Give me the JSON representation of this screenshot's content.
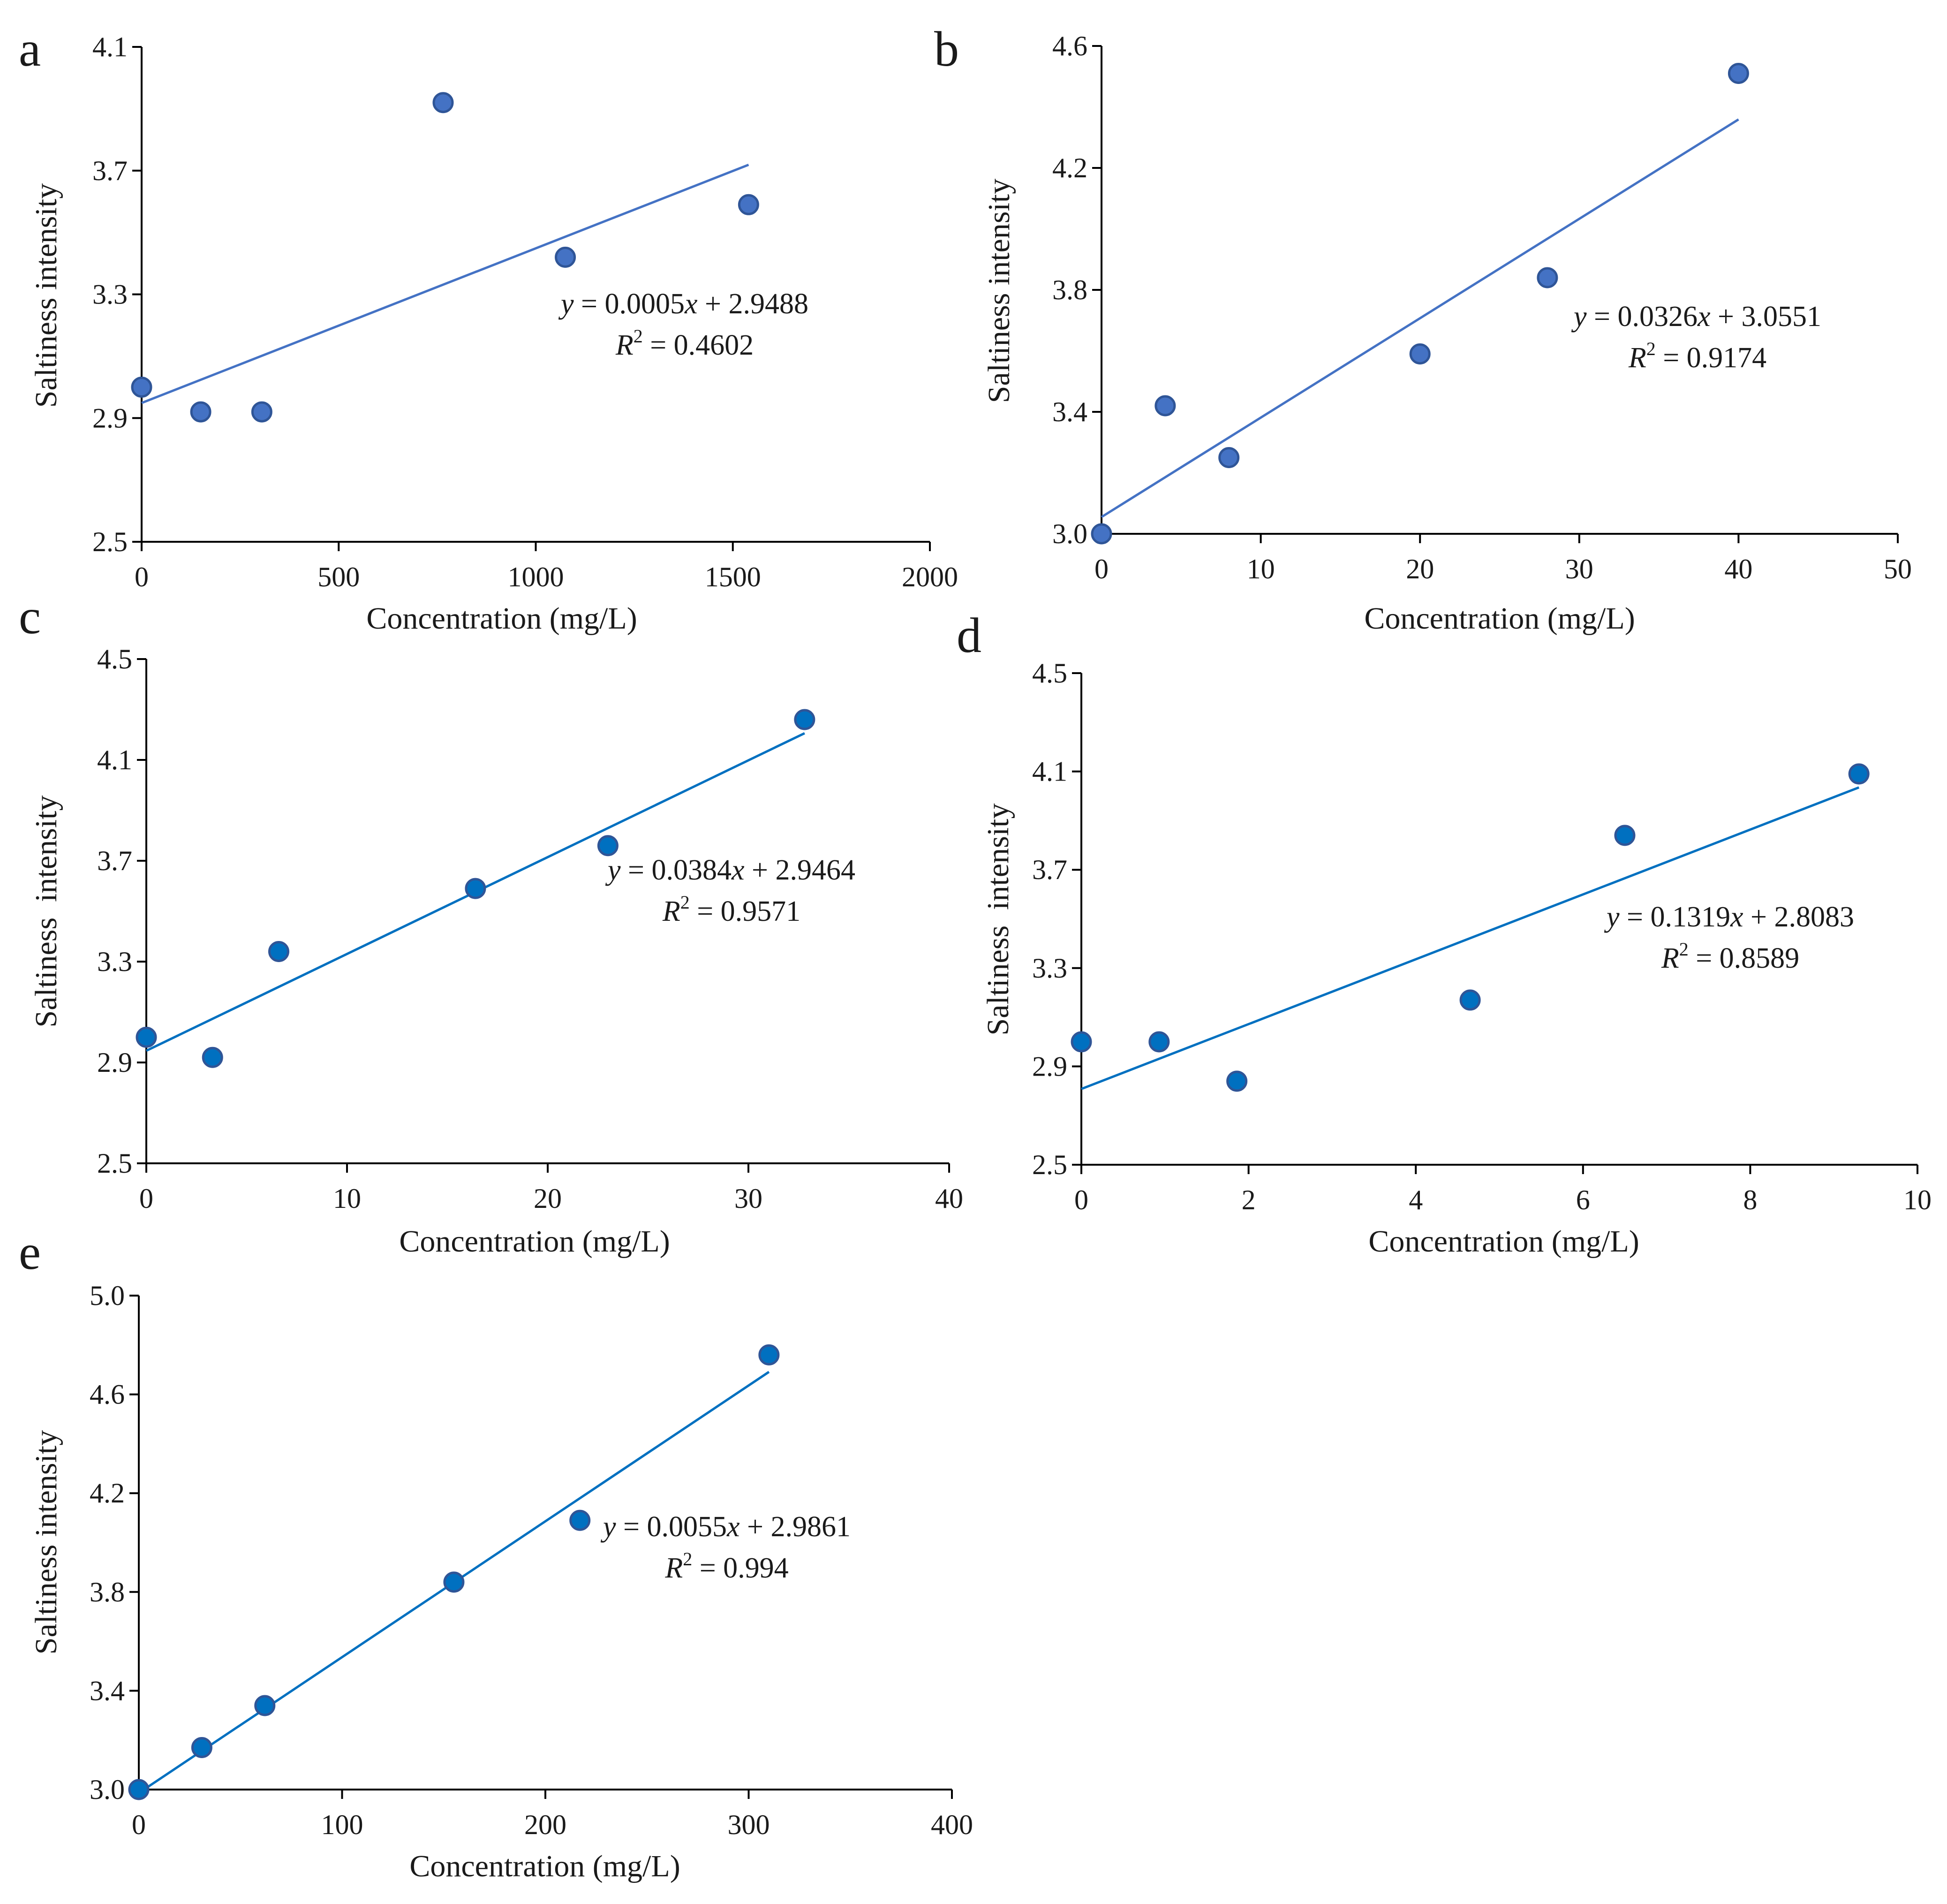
{
  "chart_data": [
    {
      "type": "scatter",
      "panel_label": "a",
      "xlabel": "Concentration (mg/L)",
      "ylabel": "Saltiness intensity",
      "xlim": [
        0,
        2000
      ],
      "ylim": [
        2.5,
        4.1
      ],
      "x_ticks": [
        "0",
        "500",
        "1000",
        "1500",
        "2000"
      ],
      "y_ticks": [
        "2.5",
        "2.9",
        "3.3",
        "3.7",
        "4.1"
      ],
      "points": {
        "x": [
          0,
          150,
          305,
          765,
          1075,
          1540
        ],
        "y": [
          3.0,
          2.92,
          2.92,
          3.92,
          3.42,
          3.59
        ]
      },
      "trendline": {
        "slope": 0.0005,
        "intercept": 2.9488,
        "x_range": [
          0,
          1540
        ]
      },
      "equation": {
        "prefix": "y",
        "body": " = 0.0005x + 2.9488",
        "r2_label": "R",
        "r2_sup": "2",
        "r2_value": " = 0.4602"
      },
      "marker_color": "#4472C4",
      "line_color": "#4472C4"
    },
    {
      "type": "scatter",
      "panel_label": "b",
      "xlabel": "Concentration (mg/L)",
      "ylabel": "Saltiness intensity",
      "xlim": [
        0,
        50
      ],
      "ylim": [
        3.0,
        4.6
      ],
      "x_ticks": [
        "0",
        "10",
        "20",
        "30",
        "40",
        "50"
      ],
      "y_ticks": [
        "3.0",
        "3.4",
        "3.8",
        "4.2",
        "4.6"
      ],
      "points": {
        "x": [
          0,
          4,
          8,
          20,
          28,
          40
        ],
        "y": [
          3.0,
          3.42,
          3.25,
          3.59,
          3.84,
          4.51
        ]
      },
      "trendline": {
        "slope": 0.0326,
        "intercept": 3.0551,
        "x_range": [
          0,
          40
        ]
      },
      "equation": {
        "prefix": "y",
        "body": " = 0.0326x + 3.0551",
        "r2_label": "R",
        "r2_sup": "2",
        "r2_value": " = 0.9174"
      },
      "marker_color": "#4472C4",
      "line_color": "#4472C4"
    },
    {
      "type": "scatter",
      "panel_label": "c",
      "xlabel": "Concentration (mg/L)",
      "ylabel": "Saltiness  intensity",
      "xlim": [
        0,
        40
      ],
      "ylim": [
        2.5,
        4.5
      ],
      "x_ticks": [
        "0",
        "10",
        "20",
        "30",
        "40"
      ],
      "y_ticks": [
        "2.5",
        "2.9",
        "3.3",
        "3.7",
        "4.1",
        "4.5"
      ],
      "points": {
        "x": [
          0,
          3.3,
          6.6,
          16.4,
          23,
          32.8
        ],
        "y": [
          3.0,
          2.92,
          3.34,
          3.59,
          3.76,
          4.26
        ]
      },
      "trendline": {
        "slope": 0.0384,
        "intercept": 2.9464,
        "x_range": [
          0,
          32.8
        ]
      },
      "equation": {
        "prefix": "y",
        "body": " = 0.0384x + 2.9464",
        "r2_label": "R",
        "r2_sup": "2",
        "r2_value": " = 0.9571"
      },
      "marker_color": "#0070C0",
      "line_color": "#0070C0"
    },
    {
      "type": "scatter",
      "panel_label": "d",
      "xlabel": "Concentration (mg/L)",
      "ylabel": "Saltiness  intensity",
      "xlim": [
        0,
        10
      ],
      "ylim": [
        2.5,
        4.5
      ],
      "x_ticks": [
        "0",
        "2",
        "4",
        "6",
        "8",
        "10"
      ],
      "y_ticks": [
        "2.5",
        "2.9",
        "3.3",
        "3.7",
        "4.1",
        "4.5"
      ],
      "points": {
        "x": [
          0,
          0.93,
          1.86,
          4.65,
          6.5,
          9.3
        ],
        "y": [
          3.0,
          3.0,
          2.84,
          3.17,
          3.84,
          4.09
        ]
      },
      "trendline": {
        "slope": 0.1319,
        "intercept": 2.8083,
        "x_range": [
          0,
          9.3
        ]
      },
      "equation": {
        "prefix": "y",
        "body": " = 0.1319x + 2.8083",
        "r2_label": "R",
        "r2_sup": "2",
        "r2_value": " = 0.8589"
      },
      "marker_color": "#0070C0",
      "line_color": "#0070C0"
    },
    {
      "type": "scatter",
      "panel_label": "e",
      "xlabel": "Concentration (mg/L)",
      "ylabel": "Saltiness intensity",
      "xlim": [
        0,
        400
      ],
      "ylim": [
        3.0,
        5.0
      ],
      "x_ticks": [
        "0",
        "100",
        "200",
        "300",
        "400"
      ],
      "y_ticks": [
        "3.0",
        "3.4",
        "3.8",
        "4.2",
        "4.6",
        "5.0"
      ],
      "points": {
        "x": [
          0,
          31,
          62,
          155,
          217,
          310
        ],
        "y": [
          3.0,
          3.17,
          3.34,
          3.84,
          4.09,
          4.76
        ]
      },
      "trendline": {
        "slope": 0.0055,
        "intercept": 2.9861,
        "x_range": [
          0,
          310
        ]
      },
      "equation": {
        "prefix": "y",
        "body": " = 0.0055x + 2.9861",
        "r2_label": "R",
        "r2_sup": "2",
        "r2_value": " = 0.994"
      },
      "marker_color": "#0070C0",
      "line_color": "#0070C0"
    }
  ]
}
